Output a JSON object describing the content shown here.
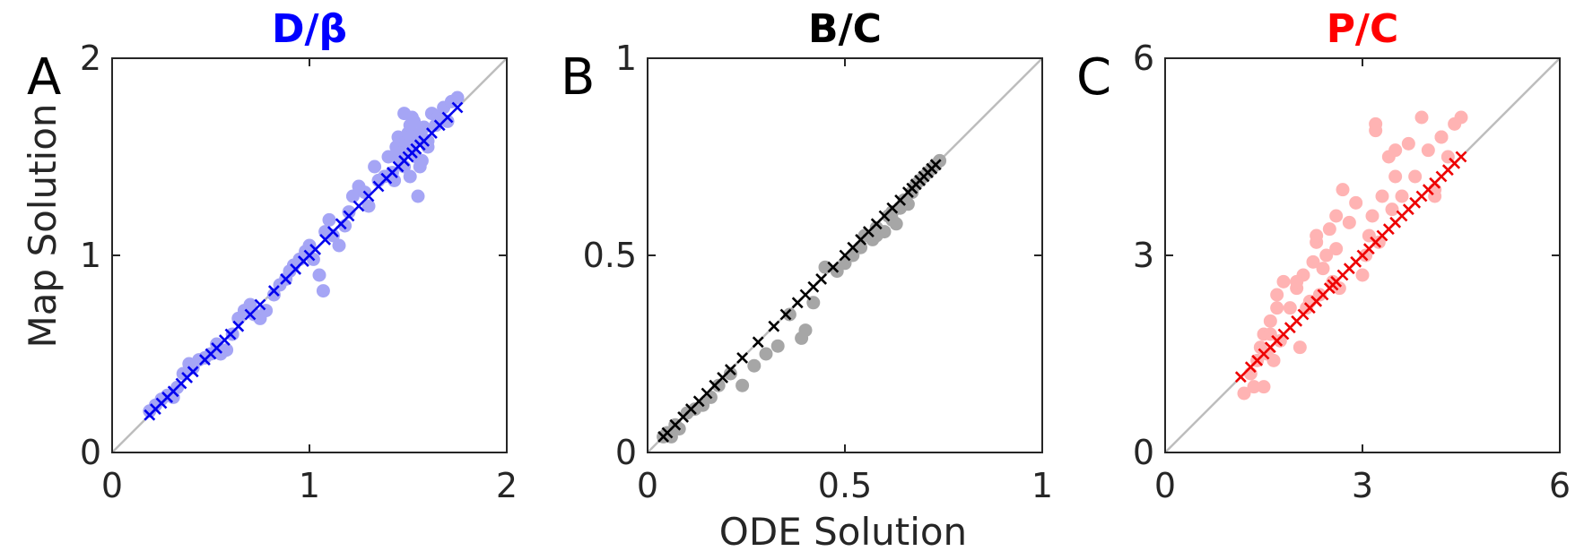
{
  "figure": {
    "xlabel": "ODE Solution",
    "ylabel": "Map Solution"
  },
  "chart_data": [
    {
      "panel": "A",
      "type": "scatter",
      "title": "D/β",
      "title_color": "#0000ff",
      "xlim": [
        0,
        2
      ],
      "ylim": [
        0,
        2
      ],
      "xticks": [
        "0",
        "1",
        "2"
      ],
      "yticks": [
        "0",
        "1",
        "2"
      ],
      "xtick_values": [
        0,
        1,
        2
      ],
      "ytick_values": [
        0,
        1,
        2
      ],
      "grid": false,
      "diagonal": true,
      "series": [
        {
          "marker": "circle",
          "color": "#a5a5f5",
          "x": [
            0.19,
            0.22,
            0.25,
            0.28,
            0.31,
            0.33,
            0.36,
            0.39,
            0.41,
            0.44,
            0.47,
            0.5,
            0.53,
            0.55,
            0.58,
            0.61,
            0.64,
            0.67,
            0.7,
            0.72,
            0.75,
            0.78,
            0.82,
            0.85,
            0.88,
            0.9,
            0.92,
            0.95,
            0.98,
            1.0,
            1.02,
            1.05,
            1.07,
            1.08,
            1.1,
            1.12,
            1.15,
            1.18,
            1.2,
            1.22,
            1.25,
            1.28,
            1.3,
            1.33,
            1.35,
            1.38,
            1.4,
            1.42,
            1.44,
            1.45,
            1.46,
            1.47,
            1.48,
            1.49,
            1.5,
            1.51,
            1.52,
            1.53,
            1.54,
            1.55,
            1.56,
            1.57,
            1.58,
            1.6,
            1.62,
            1.65,
            1.68,
            1.7,
            1.72,
            1.75,
            1.48,
            1.51,
            1.54,
            1.57,
            1.6,
            1.45,
            1.43,
            1.52,
            1.56,
            1.64
          ],
          "y": [
            0.21,
            0.24,
            0.27,
            0.29,
            0.28,
            0.33,
            0.4,
            0.45,
            0.43,
            0.47,
            0.48,
            0.5,
            0.55,
            0.5,
            0.52,
            0.6,
            0.68,
            0.72,
            0.75,
            0.7,
            0.68,
            0.72,
            0.8,
            0.85,
            0.88,
            0.92,
            0.95,
            0.98,
            1.02,
            1.05,
            0.98,
            0.9,
            0.82,
            1.12,
            1.18,
            1.1,
            1.05,
            1.15,
            1.22,
            1.3,
            1.35,
            1.32,
            1.25,
            1.45,
            1.38,
            1.4,
            1.5,
            1.42,
            1.55,
            1.6,
            1.48,
            1.52,
            1.45,
            1.58,
            1.62,
            1.4,
            1.55,
            1.68,
            1.5,
            1.3,
            1.45,
            1.6,
            1.65,
            1.55,
            1.72,
            1.7,
            1.75,
            1.68,
            1.78,
            1.8,
            1.72,
            1.66,
            1.6,
            1.48,
            1.58,
            1.52,
            1.38,
            1.7,
            1.62,
            1.66
          ]
        },
        {
          "marker": "x",
          "color": "#0000ee",
          "x": [
            0.19,
            0.22,
            0.25,
            0.28,
            0.31,
            0.35,
            0.38,
            0.41,
            0.47,
            0.5,
            0.53,
            0.57,
            0.6,
            0.64,
            0.7,
            0.75,
            0.82,
            0.88,
            0.93,
            0.97,
            1.0,
            1.03,
            1.08,
            1.12,
            1.16,
            1.2,
            1.25,
            1.3,
            1.35,
            1.39,
            1.42,
            1.45,
            1.48,
            1.5,
            1.52,
            1.54,
            1.56,
            1.58,
            1.62,
            1.66,
            1.7,
            1.75
          ],
          "y": [
            0.19,
            0.22,
            0.25,
            0.28,
            0.31,
            0.35,
            0.38,
            0.41,
            0.47,
            0.5,
            0.53,
            0.57,
            0.6,
            0.64,
            0.7,
            0.75,
            0.82,
            0.88,
            0.93,
            0.97,
            1.0,
            1.03,
            1.08,
            1.12,
            1.16,
            1.2,
            1.25,
            1.3,
            1.35,
            1.39,
            1.42,
            1.45,
            1.48,
            1.5,
            1.52,
            1.54,
            1.56,
            1.58,
            1.62,
            1.66,
            1.7,
            1.75
          ]
        }
      ]
    },
    {
      "panel": "B",
      "type": "scatter",
      "title": "B/C",
      "title_color": "#000000",
      "xlim": [
        0,
        1
      ],
      "ylim": [
        0,
        1
      ],
      "xticks": [
        "0",
        "0.5",
        "1"
      ],
      "yticks": [
        "0",
        "0.5",
        "1"
      ],
      "xtick_values": [
        0,
        0.5,
        1
      ],
      "ytick_values": [
        0,
        0.5,
        1
      ],
      "grid": false,
      "diagonal": true,
      "series": [
        {
          "marker": "circle",
          "color": "#a6a6a6",
          "x": [
            0.04,
            0.05,
            0.06,
            0.07,
            0.08,
            0.1,
            0.12,
            0.14,
            0.16,
            0.18,
            0.21,
            0.24,
            0.27,
            0.3,
            0.33,
            0.36,
            0.39,
            0.4,
            0.42,
            0.45,
            0.48,
            0.5,
            0.52,
            0.54,
            0.55,
            0.57,
            0.58,
            0.6,
            0.61,
            0.62,
            0.63,
            0.64,
            0.65,
            0.66,
            0.67,
            0.68,
            0.69,
            0.7,
            0.71,
            0.72,
            0.73,
            0.74,
            0.62,
            0.58,
            0.65
          ],
          "y": [
            0.04,
            0.05,
            0.04,
            0.07,
            0.06,
            0.1,
            0.11,
            0.12,
            0.14,
            0.17,
            0.2,
            0.17,
            0.22,
            0.25,
            0.27,
            0.35,
            0.29,
            0.31,
            0.38,
            0.47,
            0.46,
            0.48,
            0.5,
            0.52,
            0.55,
            0.54,
            0.57,
            0.56,
            0.6,
            0.61,
            0.58,
            0.62,
            0.64,
            0.63,
            0.66,
            0.68,
            0.69,
            0.7,
            0.71,
            0.72,
            0.73,
            0.74,
            0.59,
            0.55,
            0.63
          ]
        },
        {
          "marker": "x",
          "color": "#000000",
          "x": [
            0.04,
            0.05,
            0.07,
            0.09,
            0.11,
            0.13,
            0.15,
            0.17,
            0.19,
            0.21,
            0.24,
            0.28,
            0.32,
            0.35,
            0.38,
            0.4,
            0.42,
            0.44,
            0.47,
            0.5,
            0.52,
            0.54,
            0.56,
            0.58,
            0.6,
            0.62,
            0.64,
            0.66,
            0.67,
            0.68,
            0.69,
            0.7,
            0.71,
            0.72,
            0.73
          ],
          "y": [
            0.04,
            0.05,
            0.07,
            0.09,
            0.11,
            0.13,
            0.15,
            0.17,
            0.19,
            0.21,
            0.24,
            0.28,
            0.32,
            0.35,
            0.38,
            0.4,
            0.42,
            0.44,
            0.47,
            0.5,
            0.52,
            0.54,
            0.56,
            0.58,
            0.6,
            0.62,
            0.64,
            0.66,
            0.67,
            0.68,
            0.69,
            0.7,
            0.71,
            0.72,
            0.73
          ]
        }
      ]
    },
    {
      "panel": "C",
      "type": "scatter",
      "title": "P/C",
      "title_color": "#ff0000",
      "xlim": [
        0,
        6
      ],
      "ylim": [
        0,
        6
      ],
      "xticks": [
        "0",
        "3",
        "6"
      ],
      "yticks": [
        "0",
        "3",
        "6"
      ],
      "xtick_values": [
        0,
        3,
        6
      ],
      "ytick_values": [
        0,
        3,
        6
      ],
      "grid": false,
      "diagonal": true,
      "series": [
        {
          "marker": "circle",
          "color": "#ffb3b3",
          "x": [
            1.2,
            1.3,
            1.35,
            1.4,
            1.45,
            1.5,
            1.55,
            1.6,
            1.65,
            1.7,
            1.75,
            1.8,
            1.9,
            2.0,
            2.05,
            2.1,
            2.15,
            2.2,
            2.25,
            2.3,
            2.35,
            2.4,
            2.45,
            2.5,
            2.55,
            2.6,
            2.65,
            2.7,
            2.8,
            2.9,
            3.0,
            3.05,
            3.1,
            3.15,
            3.2,
            3.25,
            3.3,
            3.4,
            3.45,
            3.5,
            3.6,
            3.7,
            3.8,
            3.9,
            4.0,
            4.1,
            4.2,
            4.3,
            4.4,
            4.5,
            1.5,
            1.6,
            1.7,
            2.0,
            2.3,
            2.6,
            3.2,
            3.5,
            4.1,
            4.2
          ],
          "y": [
            0.9,
            1.2,
            1.0,
            1.4,
            1.6,
            1.8,
            1.5,
            2.0,
            1.4,
            2.2,
            1.7,
            2.6,
            2.2,
            2.5,
            1.6,
            2.7,
            2.2,
            2.3,
            2.9,
            3.2,
            2.4,
            2.8,
            3.0,
            3.4,
            2.6,
            3.6,
            2.5,
            4.0,
            3.5,
            3.8,
            2.7,
            3.0,
            3.3,
            3.6,
            5.0,
            3.2,
            3.9,
            4.5,
            3.7,
            4.2,
            3.9,
            4.7,
            4.2,
            5.1,
            4.6,
            4.0,
            4.8,
            4.5,
            5.0,
            5.1,
            1.0,
            1.8,
            2.4,
            2.6,
            3.3,
            3.1,
            4.9,
            4.6,
            3.9,
            4.8
          ]
        },
        {
          "marker": "x",
          "color": "#ee0000",
          "x": [
            1.15,
            1.3,
            1.4,
            1.5,
            1.6,
            1.7,
            1.8,
            1.9,
            2.0,
            2.1,
            2.2,
            2.3,
            2.4,
            2.5,
            2.55,
            2.6,
            2.7,
            2.8,
            2.9,
            3.0,
            3.1,
            3.2,
            3.3,
            3.4,
            3.5,
            3.6,
            3.7,
            3.8,
            3.9,
            4.0,
            4.1,
            4.2,
            4.3,
            4.4,
            4.5
          ],
          "y": [
            1.15,
            1.3,
            1.4,
            1.5,
            1.6,
            1.7,
            1.8,
            1.9,
            2.0,
            2.1,
            2.2,
            2.3,
            2.4,
            2.5,
            2.55,
            2.6,
            2.7,
            2.8,
            2.9,
            3.0,
            3.1,
            3.2,
            3.3,
            3.4,
            3.5,
            3.6,
            3.7,
            3.8,
            3.9,
            4.0,
            4.1,
            4.2,
            4.3,
            4.4,
            4.5
          ]
        }
      ]
    }
  ]
}
